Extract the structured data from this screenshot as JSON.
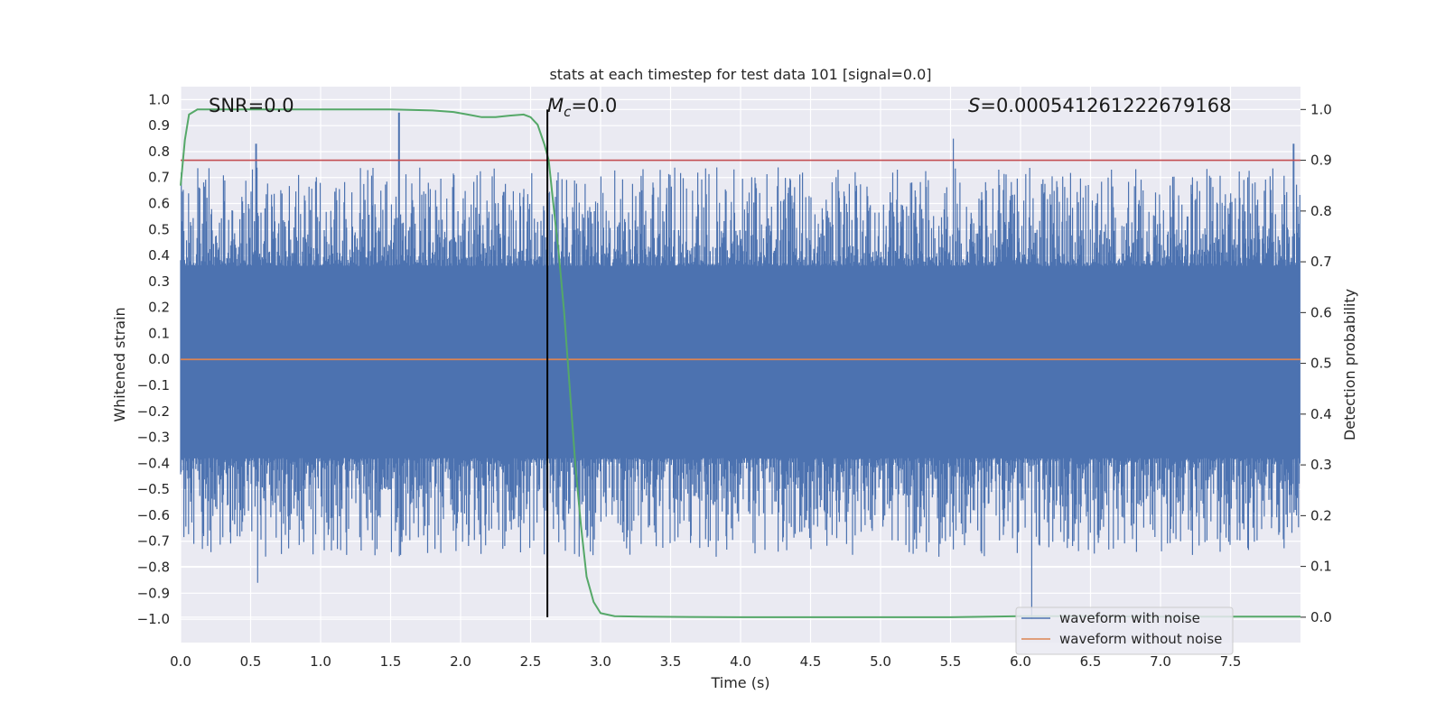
{
  "chart_data": {
    "type": "line",
    "title": "stats at each timestep for test data 101 [signal=0.0]",
    "xlabel": "Time (s)",
    "ylabel": "Whitened strain",
    "y2label": "Detection probability",
    "xlim": [
      0.0,
      8.0
    ],
    "ylim": [
      -1.09,
      1.05
    ],
    "y2lim": [
      -0.05,
      1.045
    ],
    "xticks": [
      "0.0",
      "0.5",
      "1.0",
      "1.5",
      "2.0",
      "2.5",
      "3.0",
      "3.5",
      "4.0",
      "4.5",
      "5.0",
      "5.5",
      "6.0",
      "6.5",
      "7.0",
      "7.5"
    ],
    "yticks": [
      "1.0",
      "0.9",
      "0.8",
      "0.7",
      "0.6",
      "0.5",
      "0.4",
      "0.3",
      "0.2",
      "0.1",
      "0.0",
      "−0.1",
      "−0.2",
      "−0.3",
      "−0.4",
      "−0.5",
      "−0.6",
      "−0.7",
      "−0.8",
      "−0.9",
      "−1.0"
    ],
    "y2ticks": [
      "1.0",
      "0.9",
      "0.8",
      "0.7",
      "0.6",
      "0.5",
      "0.4",
      "0.3",
      "0.2",
      "0.1",
      "0.0"
    ],
    "grid": true,
    "legend_position": "bottom-right",
    "colors": {
      "noise": "#4c72b0",
      "clean": "#dd8452",
      "probability": "#55a868",
      "threshold": "#c44e52",
      "marker": "#000000",
      "background": "#eaeaf2",
      "grid": "#ffffff"
    },
    "series": [
      {
        "name": "waveform with noise",
        "axis": "left",
        "description": "whitened noisy strain, roughly within -0.55..0.55 with spikes",
        "peaks": [
          {
            "x": 0.54,
            "y": 0.83
          },
          {
            "x": 1.56,
            "y": 0.95
          },
          {
            "x": 5.52,
            "y": 0.85
          },
          {
            "x": 6.08,
            "y": -1.0
          },
          {
            "x": 0.55,
            "y": -0.86
          },
          {
            "x": 7.95,
            "y": 0.83
          }
        ]
      },
      {
        "name": "waveform without noise",
        "axis": "left",
        "x": [
          0.0,
          8.0
        ],
        "values": [
          0.0,
          0.0
        ]
      },
      {
        "name": "Detection probability",
        "axis": "right",
        "x": [
          0.0,
          0.03,
          0.06,
          0.12,
          0.2,
          0.5,
          1.0,
          1.5,
          1.8,
          1.95,
          2.05,
          2.15,
          2.25,
          2.35,
          2.45,
          2.5,
          2.55,
          2.6,
          2.63,
          2.66,
          2.7,
          2.74,
          2.78,
          2.82,
          2.86,
          2.9,
          2.95,
          3.0,
          3.1,
          3.3,
          4.0,
          5.0,
          5.5,
          6.0,
          6.5,
          7.0,
          8.0
        ],
        "values": [
          0.85,
          0.94,
          0.99,
          1.0,
          1.0,
          1.0,
          1.0,
          1.0,
          0.998,
          0.995,
          0.99,
          0.985,
          0.985,
          0.988,
          0.99,
          0.985,
          0.97,
          0.93,
          0.9,
          0.82,
          0.72,
          0.6,
          0.45,
          0.3,
          0.18,
          0.08,
          0.03,
          0.008,
          0.002,
          0.001,
          0.0,
          0.0,
          0.0,
          0.002,
          0.002,
          0.001,
          0.001
        ]
      },
      {
        "name": "threshold",
        "axis": "right",
        "x": [
          0.0,
          8.0
        ],
        "values": [
          0.9,
          0.9
        ]
      },
      {
        "name": "timestep marker",
        "axis": "right",
        "x": [
          2.62,
          2.62
        ],
        "values": [
          0.0,
          1.0
        ]
      }
    ],
    "annotations": {
      "snr": "SNR=0.0",
      "mc_symbol": "M",
      "mc_subscript": "c",
      "mc_value": "=0.0",
      "s_symbol": "S",
      "s_value": "=0.000541261222679168"
    }
  }
}
